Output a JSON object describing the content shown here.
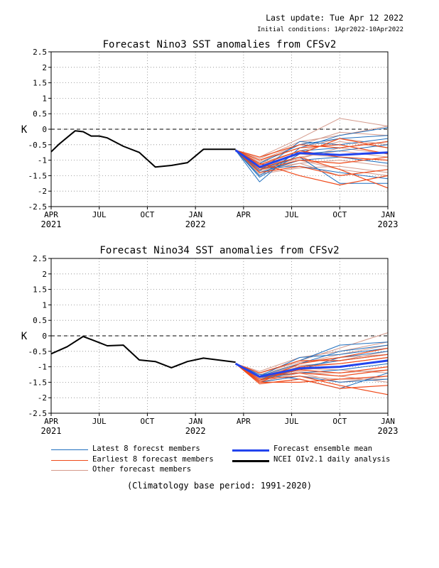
{
  "header": {
    "last_update": "Last update: Tue Apr 12 2022",
    "initial_conditions": "Initial conditions: 1Apr2022-10Apr2022"
  },
  "colors": {
    "latest_members": "#1f6fbf",
    "earliest_members": "#f04a1a",
    "other_members": "#d49a8c",
    "ensemble_mean": "#2244ee",
    "analysis": "#000000",
    "grid": "#888888"
  },
  "chart_data": [
    {
      "type": "line",
      "title": "Forecast Nino3 SST anomalies from CFSv2",
      "ylabel": "K",
      "ylim": [
        -2.5,
        2.5
      ],
      "yticks": [
        "2.5",
        "2",
        "1.5",
        "1",
        "0.5",
        "0",
        "-0.5",
        "-1",
        "-1.5",
        "-2",
        "-2.5"
      ],
      "xticks": [
        {
          "month": "APR",
          "year": "2021"
        },
        {
          "month": "JUL",
          "year": ""
        },
        {
          "month": "OCT",
          "year": ""
        },
        {
          "month": "JAN",
          "year": "2022"
        },
        {
          "month": "APR",
          "year": ""
        },
        {
          "month": "JUL",
          "year": ""
        },
        {
          "month": "OCT",
          "year": ""
        },
        {
          "month": "JAN",
          "year": "2023"
        }
      ],
      "grid": true,
      "analysis": {
        "months": [
          0,
          0.5,
          1.5,
          2,
          2.5,
          3,
          3.5,
          4.5,
          5.5,
          6.5,
          7.5,
          8.5,
          9.5,
          11.5
        ],
        "values": [
          -0.73,
          -0.48,
          -0.05,
          -0.08,
          -0.22,
          -0.22,
          -0.28,
          -0.55,
          -0.75,
          -1.22,
          -1.17,
          -1.08,
          -0.65,
          -0.65
        ]
      },
      "forecast_months": [
        11.5,
        13,
        15.5,
        18,
        21
      ],
      "ensemble_mean": [
        -0.68,
        -1.22,
        -0.77,
        -0.83,
        -0.75
      ],
      "latest_members": [
        [
          -0.68,
          -1.7,
          -0.6,
          -0.2,
          0.05
        ],
        [
          -0.68,
          -1.5,
          -0.7,
          -0.6,
          -0.4
        ],
        [
          -0.68,
          -1.3,
          -0.9,
          -1.75,
          -1.75
        ],
        [
          -0.68,
          -1.1,
          -0.5,
          -0.3,
          -0.2
        ],
        [
          -0.68,
          -1.4,
          -1.0,
          -0.9,
          -1.1
        ],
        [
          -0.68,
          -1.55,
          -0.8,
          -0.7,
          -0.5
        ],
        [
          -0.68,
          -1.25,
          -1.2,
          -1.4,
          -1.6
        ],
        [
          -0.68,
          -1.35,
          -0.4,
          -0.5,
          -0.3
        ]
      ],
      "earliest_members": [
        [
          -0.68,
          -1.1,
          -1.5,
          -1.8,
          -1.5
        ],
        [
          -0.68,
          -1.2,
          -0.8,
          -0.3,
          -0.6
        ],
        [
          -0.68,
          -1.3,
          -1.0,
          -1.1,
          -0.9
        ],
        [
          -0.68,
          -1.0,
          -0.6,
          -0.5,
          -0.8
        ],
        [
          -0.68,
          -1.4,
          -1.2,
          -1.5,
          -1.3
        ],
        [
          -0.68,
          -1.15,
          -0.7,
          -0.9,
          -1.0
        ],
        [
          -0.68,
          -1.25,
          -0.9,
          -1.3,
          -1.9
        ],
        [
          -0.68,
          -0.9,
          -0.5,
          -0.6,
          -0.4
        ]
      ],
      "other_members": [
        [
          -0.68,
          -0.9,
          -0.3,
          0.35,
          0.1
        ],
        [
          -0.68,
          -1.0,
          -0.5,
          -0.1,
          -0.2
        ],
        [
          -0.68,
          -1.1,
          -0.7,
          -0.4,
          -0.6
        ],
        [
          -0.68,
          -1.2,
          -0.9,
          -0.7,
          -0.9
        ],
        [
          -0.68,
          -1.3,
          -1.1,
          -1.0,
          -1.2
        ],
        [
          -0.68,
          -1.45,
          -1.25,
          -1.2,
          -1.4
        ],
        [
          -0.68,
          -1.05,
          -0.6,
          -0.3,
          -0.5
        ],
        [
          -0.68,
          -1.15,
          -0.8,
          -0.9,
          -1.0
        ],
        [
          -0.68,
          -1.35,
          -1.0,
          -1.3,
          -1.5
        ],
        [
          -0.68,
          -0.95,
          -0.4,
          -0.2,
          0.1
        ],
        [
          -0.68,
          -1.25,
          -0.95,
          -0.6,
          -0.8
        ],
        [
          -0.68,
          -1.4,
          -1.1,
          -1.5,
          -1.3
        ]
      ]
    },
    {
      "type": "line",
      "title": "Forecast Nino34 SST anomalies from CFSv2",
      "ylabel": "K",
      "ylim": [
        -2.5,
        2.5
      ],
      "yticks": [
        "2.5",
        "2",
        "1.5",
        "1",
        "0.5",
        "0",
        "-0.5",
        "-1",
        "-1.5",
        "-2",
        "-2.5"
      ],
      "xticks": [
        {
          "month": "APR",
          "year": "2021"
        },
        {
          "month": "JUL",
          "year": ""
        },
        {
          "month": "OCT",
          "year": ""
        },
        {
          "month": "JAN",
          "year": "2022"
        },
        {
          "month": "APR",
          "year": ""
        },
        {
          "month": "JUL",
          "year": ""
        },
        {
          "month": "OCT",
          "year": ""
        },
        {
          "month": "JAN",
          "year": "2023"
        }
      ],
      "grid": true,
      "analysis": {
        "months": [
          0,
          1,
          2,
          2.5,
          3,
          3.5,
          4.5,
          5.5,
          6.5,
          7.5,
          8.5,
          9.5,
          11.5
        ],
        "values": [
          -0.58,
          -0.35,
          -0.02,
          -0.12,
          -0.22,
          -0.32,
          -0.3,
          -0.78,
          -0.83,
          -1.03,
          -0.83,
          -0.72,
          -0.85
        ]
      },
      "forecast_months": [
        11.5,
        13,
        15.5,
        18,
        21
      ],
      "ensemble_mean": [
        -0.9,
        -1.32,
        -1.05,
        -1.0,
        -0.8
      ],
      "latest_members": [
        [
          -0.9,
          -1.2,
          -0.8,
          -0.3,
          -0.2
        ],
        [
          -0.9,
          -1.4,
          -1.1,
          -0.7,
          -0.5
        ],
        [
          -0.9,
          -1.5,
          -1.3,
          -1.5,
          -1.4
        ],
        [
          -0.9,
          -1.3,
          -0.9,
          -0.5,
          -0.3
        ],
        [
          -0.9,
          -1.35,
          -1.2,
          -1.1,
          -0.9
        ],
        [
          -0.9,
          -1.45,
          -1.0,
          -0.8,
          -0.6
        ],
        [
          -0.9,
          -1.25,
          -1.4,
          -1.7,
          -1.2
        ],
        [
          -0.9,
          -1.3,
          -0.7,
          -0.6,
          -0.4
        ]
      ],
      "earliest_members": [
        [
          -0.9,
          -1.4,
          -1.3,
          -1.6,
          -1.9
        ],
        [
          -0.9,
          -1.5,
          -1.0,
          -0.9,
          -0.7
        ],
        [
          -0.9,
          -1.3,
          -1.2,
          -1.3,
          -1.1
        ],
        [
          -0.9,
          -1.45,
          -0.9,
          -0.7,
          -0.4
        ],
        [
          -0.9,
          -1.55,
          -1.4,
          -1.7,
          -1.6
        ],
        [
          -0.9,
          -1.2,
          -0.8,
          -0.8,
          -0.6
        ],
        [
          -0.9,
          -1.35,
          -1.1,
          -1.2,
          -1.0
        ],
        [
          -0.9,
          -1.5,
          -1.5,
          -1.4,
          -1.3
        ]
      ],
      "other_members": [
        [
          -0.9,
          -1.2,
          -0.8,
          -0.4,
          0.1
        ],
        [
          -0.9,
          -1.25,
          -0.9,
          -0.6,
          -0.3
        ],
        [
          -0.9,
          -1.3,
          -1.0,
          -0.8,
          -0.5
        ],
        [
          -0.9,
          -1.35,
          -1.1,
          -1.0,
          -0.8
        ],
        [
          -0.9,
          -1.4,
          -1.2,
          -1.2,
          -1.1
        ],
        [
          -0.9,
          -1.5,
          -1.3,
          -1.4,
          -1.4
        ],
        [
          -0.9,
          -1.15,
          -0.7,
          -0.5,
          -0.2
        ],
        [
          -0.9,
          -1.3,
          -0.95,
          -0.9,
          -0.7
        ],
        [
          -0.9,
          -1.45,
          -1.15,
          -1.3,
          -1.5
        ],
        [
          -0.9,
          -1.2,
          -0.85,
          -0.7,
          -0.6
        ],
        [
          -0.9,
          -1.35,
          -1.05,
          -1.1,
          -1.2
        ],
        [
          -0.9,
          -1.5,
          -1.2,
          -1.5,
          -1.3
        ]
      ]
    }
  ],
  "legend": {
    "latest": "Latest 8 forecst members",
    "earliest": "Earliest 8 forecast members",
    "other": "Other forecast members",
    "mean": "Forecast ensemble mean",
    "analysis": "NCEI OIv2.1 daily analysis"
  },
  "footnote": "(Climatology base period: 1991-2020)"
}
